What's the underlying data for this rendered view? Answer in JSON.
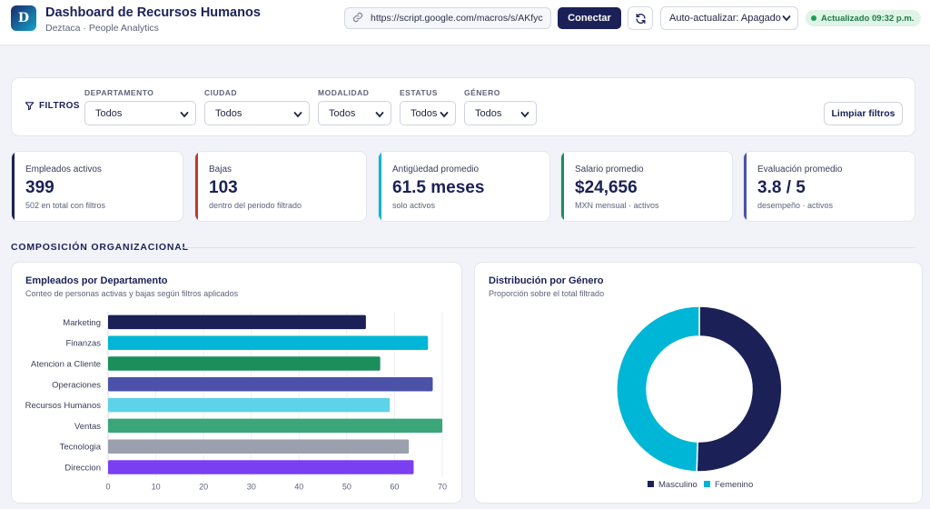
{
  "header": {
    "logo_letter": "D",
    "title": "Dashboard de Recursos Humanos",
    "subtitle": "Deztaca · People Analytics",
    "url_value": "https://script.google.com/macros/s/AKfyc",
    "connect_label": "Conectar",
    "auto_update_label": "Auto-actualizar: Apagado",
    "updated_label": "Actualizado 09:32 p.m."
  },
  "filters": {
    "title": "FILTROS",
    "groups": [
      {
        "label": "DEPARTAMENTO",
        "value": "Todos"
      },
      {
        "label": "CIUDAD",
        "value": "Todos"
      },
      {
        "label": "MODALIDAD",
        "value": "Todos"
      },
      {
        "label": "ESTATUS",
        "value": "Todos"
      },
      {
        "label": "GÉNERO",
        "value": "Todos"
      }
    ],
    "clear_label": "Limpiar filtros"
  },
  "kpis": [
    {
      "label": "Empleados activos",
      "value": "399",
      "sub": "502 en total con filtros",
      "color": "#1b2157"
    },
    {
      "label": "Bajas",
      "value": "103",
      "sub": "dentro del periodo filtrado",
      "color": "#c0392b"
    },
    {
      "label": "Antigüedad promedio",
      "value": "61.5 meses",
      "sub": "solo activos",
      "color": "#00b6d6"
    },
    {
      "label": "Salario promedio",
      "value": "$24,656",
      "sub": "MXN mensual · activos",
      "color": "#1a8f5c"
    },
    {
      "label": "Evaluación promedio",
      "value": "3.8 / 5",
      "sub": "desempeño · activos",
      "color": "#4b52a8"
    }
  ],
  "section_title": "COMPOSICIÓN ORGANIZACIONAL",
  "charts": {
    "dept": {
      "title": "Empleados por Departamento",
      "subtitle": "Conteo de personas activas y bajas según filtros aplicados"
    },
    "gender": {
      "title": "Distribución por Género",
      "subtitle": "Proporción sobre el total filtrado"
    }
  },
  "chart_data": [
    {
      "type": "bar",
      "orientation": "horizontal",
      "title": "Empleados por Departamento",
      "categories": [
        "Marketing",
        "Finanzas",
        "Atencion a Cliente",
        "Operaciones",
        "Recursos Humanos",
        "Ventas",
        "Tecnologia",
        "Direccion"
      ],
      "values": [
        54,
        67,
        57,
        68,
        59,
        70,
        63,
        64
      ],
      "colors": [
        "#1b2157",
        "#00b6d6",
        "#1a8f5c",
        "#4b52a8",
        "#5cd3e8",
        "#3aa679",
        "#9aa0ad",
        "#7b3ff2"
      ],
      "xlim": [
        0,
        70
      ],
      "xticks": [
        0,
        10,
        20,
        30,
        40,
        50,
        60,
        70
      ],
      "grid": true
    },
    {
      "type": "pie",
      "style": "donut",
      "title": "Distribución por Género",
      "labels": [
        "Masculino",
        "Femenino"
      ],
      "values": [
        50.5,
        49.5
      ],
      "colors": [
        "#1b2157",
        "#00b6d6"
      ],
      "legend": "bottom"
    }
  ]
}
